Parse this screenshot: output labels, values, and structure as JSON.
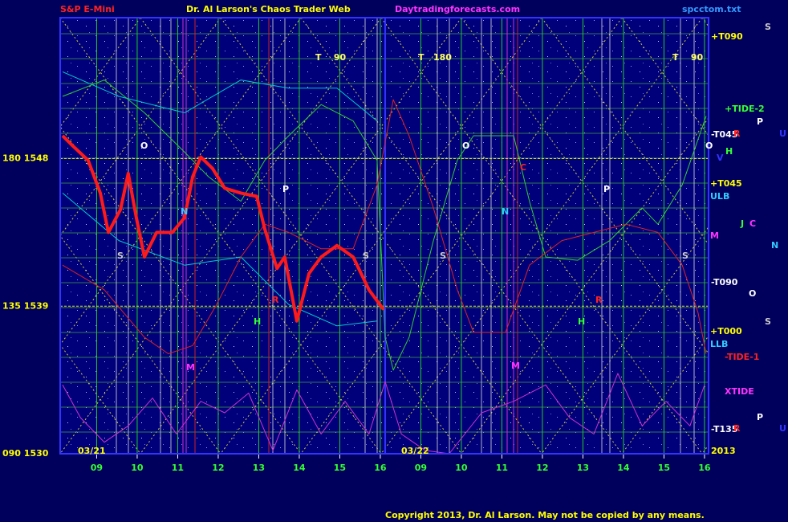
{
  "chart_data": {
    "type": "line",
    "title": "Dr. Al Larson's Chaos Trader Web",
    "left_title": "S&P E-Mini",
    "site": "Daytradingforecasts.com",
    "file": "spcctom.txt",
    "copyright": "Copyright 2013, Dr. Al Larson. May not be copied by any means.",
    "xlim": [
      8.1,
      24.1
    ],
    "ylim": [
      1530,
      1556.6
    ],
    "xticks": [
      {
        "value": 9,
        "label": "09"
      },
      10,
      11,
      12,
      13,
      14,
      15,
      16,
      {
        "value": 17,
        "label": "09"
      },
      {
        "value": 18,
        "label": "10"
      },
      {
        "value": 19,
        "label": "11"
      },
      {
        "value": 20,
        "label": "12"
      },
      {
        "value": 21,
        "label": "13"
      },
      {
        "value": 22,
        "label": "14"
      },
      {
        "value": 23,
        "label": "15"
      },
      {
        "value": 24,
        "label": "16"
      }
    ],
    "yticks": [
      {
        "value": 1530,
        "label": "090 1530"
      },
      {
        "value": 1539,
        "label": "135 1539"
      },
      {
        "value": 1548,
        "label": "180 1548"
      }
    ],
    "grid": true,
    "series": [
      {
        "color": "#00cccc",
        "width": 1,
        "x": [
          8.16,
          9.55,
          11.17,
          12.56,
          13.74,
          14.93,
          15.92
        ],
        "values": [
          1553.3,
          1551.8,
          1550.8,
          1552.8,
          1552.3,
          1552.3,
          1550.3
        ]
      },
      {
        "color": "#00cccc",
        "width": 1,
        "x": [
          8.16,
          9.55,
          11.17,
          12.56,
          13.74,
          14.93,
          15.92
        ],
        "values": [
          1545.9,
          1543.0,
          1541.5,
          1542.0,
          1539.1,
          1537.8,
          1538.1
        ]
      },
      {
        "color": "#33cc33",
        "width": 1,
        "x": [
          8.16,
          9.19,
          10.18,
          11.17,
          11.76,
          12.56,
          13.15,
          13.74,
          14.54,
          15.33,
          15.92,
          16.12,
          16.32,
          16.71,
          17.31,
          17.9,
          18.3,
          19.29,
          19.68,
          20.08,
          20.87,
          21.66,
          22.46,
          22.85,
          23.45,
          24.04
        ],
        "values": [
          1551.8,
          1552.8,
          1550.8,
          1548.4,
          1546.9,
          1545.4,
          1547.9,
          1549.4,
          1551.3,
          1550.3,
          1547.9,
          1537.1,
          1535.1,
          1537.1,
          1543.0,
          1547.9,
          1549.4,
          1549.4,
          1545.4,
          1542.0,
          1541.8,
          1543.0,
          1545.0,
          1544.0,
          1546.4,
          1550.6
        ]
      },
      {
        "color": "#dd2222",
        "width": 1,
        "x": [
          8.16,
          9.19,
          10.18,
          10.77,
          11.37,
          11.96,
          12.56,
          13.15,
          13.74,
          14.54,
          15.33,
          15.92,
          16.32,
          16.71,
          17.31,
          17.9,
          18.3,
          19.09,
          19.68,
          20.48,
          21.27,
          22.06,
          22.85,
          23.45,
          23.84,
          24.04
        ],
        "values": [
          1541.5,
          1540.0,
          1537.1,
          1536.1,
          1536.6,
          1539.1,
          1542.0,
          1544.0,
          1543.5,
          1542.5,
          1542.5,
          1546.4,
          1551.6,
          1549.4,
          1545.0,
          1540.0,
          1537.4,
          1537.4,
          1541.5,
          1543.0,
          1543.5,
          1544.0,
          1543.5,
          1541.5,
          1538.6,
          1536.1
        ]
      },
      {
        "color": "#cc33cc",
        "width": 1,
        "x": [
          8.16,
          8.6,
          9.19,
          9.78,
          10.38,
          10.97,
          11.57,
          12.16,
          12.75,
          13.35,
          13.94,
          14.54,
          15.13,
          15.72,
          16.12,
          16.52,
          17.11,
          17.7,
          18.5,
          19.29,
          20.08,
          20.67,
          21.27,
          21.86,
          22.46,
          23.05,
          23.64,
          24.0
        ],
        "values": [
          1534.2,
          1532.2,
          1530.7,
          1531.7,
          1533.4,
          1531.2,
          1533.2,
          1532.5,
          1533.7,
          1530.2,
          1533.9,
          1531.2,
          1533.2,
          1531.2,
          1534.4,
          1531.2,
          1530.2,
          1530.0,
          1532.5,
          1533.2,
          1534.2,
          1532.2,
          1531.2,
          1534.9,
          1531.7,
          1533.2,
          1531.7,
          1534.2
        ]
      },
      {
        "color": "#ff1a1a",
        "width": 4,
        "x": [
          8.16,
          8.4,
          8.79,
          9.09,
          9.29,
          9.59,
          9.78,
          9.98,
          10.18,
          10.48,
          10.87,
          11.17,
          11.37,
          11.57,
          11.86,
          12.16,
          12.56,
          12.95,
          13.15,
          13.45,
          13.64,
          13.94,
          14.24,
          14.54,
          14.93,
          15.33,
          15.72,
          16.08
        ],
        "values": [
          1549.4,
          1548.8,
          1547.9,
          1545.9,
          1543.5,
          1544.9,
          1547.1,
          1544.4,
          1542.0,
          1543.5,
          1543.5,
          1544.4,
          1546.9,
          1548.1,
          1547.4,
          1546.2,
          1545.9,
          1545.7,
          1543.7,
          1541.3,
          1542.0,
          1538.1,
          1541.0,
          1542.0,
          1542.7,
          1542.0,
          1540.0,
          1538.8
        ]
      }
    ],
    "annotations": [
      "+T090",
      "+TIDE-2",
      "-T045",
      "+T045",
      "ULB",
      "M",
      "-T090",
      "+T000",
      "LLB",
      "-TIDE-1",
      "XTIDE",
      "-T135",
      "T    90",
      "T   180",
      "T    90",
      "O",
      "O",
      "P",
      "P",
      "S",
      "S",
      "S",
      "S",
      "N",
      "N",
      "M",
      "M",
      "H",
      "H",
      "S",
      "P",
      "U",
      "R",
      "H",
      "O",
      "V",
      "J",
      "C",
      "N",
      "O",
      "S",
      "P",
      "U",
      "R",
      "C",
      "R",
      "R",
      "03/21",
      "03/22",
      "2013"
    ]
  }
}
